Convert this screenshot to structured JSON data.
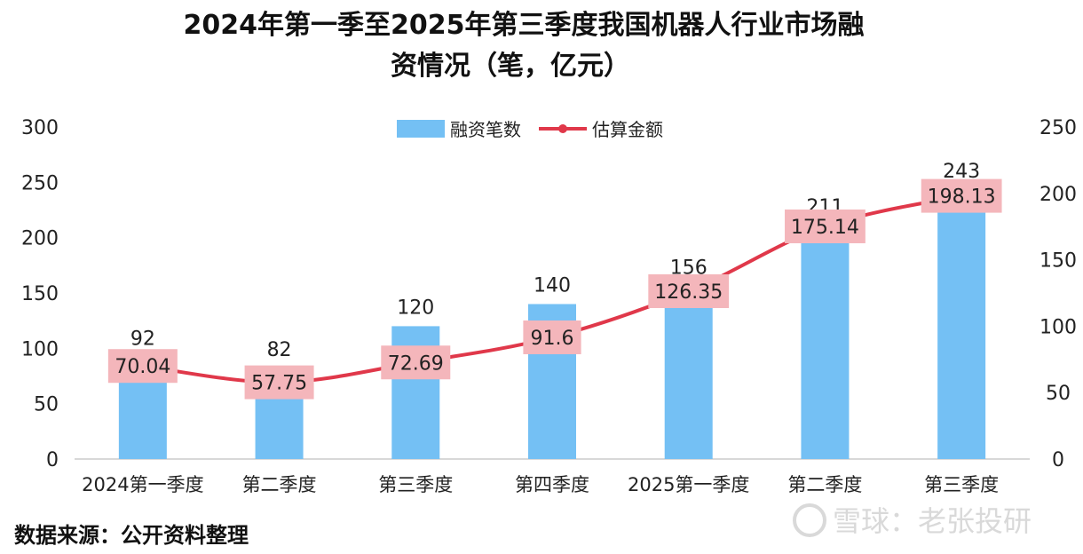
{
  "chart_data": {
    "type": "bar",
    "title_line1": "2024年第一季至2025年第三季度我国机器人行业市场融",
    "title_line2": "资情况（笔，亿元）",
    "categories": [
      "2024第一季度",
      "第二季度",
      "第三季度",
      "第四季度",
      "2025第一季度",
      "第二季度",
      "第三季度"
    ],
    "series": [
      {
        "name": "融资笔数",
        "type": "bar",
        "axis": "left",
        "values": [
          92,
          82,
          120,
          140,
          156,
          211,
          243
        ],
        "color": "#74c0f4"
      },
      {
        "name": "估算金额",
        "type": "line",
        "axis": "right",
        "values": [
          70.04,
          57.75,
          72.69,
          91.6,
          126.35,
          175.14,
          198.13
        ],
        "color": "#e0384a"
      }
    ],
    "y_left": {
      "min": 0,
      "max": 300,
      "ticks": [
        0,
        50,
        100,
        150,
        200,
        250,
        300
      ]
    },
    "y_right": {
      "min": 0,
      "max": 250,
      "ticks": [
        0,
        50,
        100,
        150,
        200,
        250
      ]
    },
    "label_box_color": "#f4b6bb",
    "grid": false,
    "legend_position": "top-center"
  },
  "footer": {
    "source": "数据来源：公开资料整理"
  },
  "watermark": {
    "text": "雪球：老张投研"
  }
}
